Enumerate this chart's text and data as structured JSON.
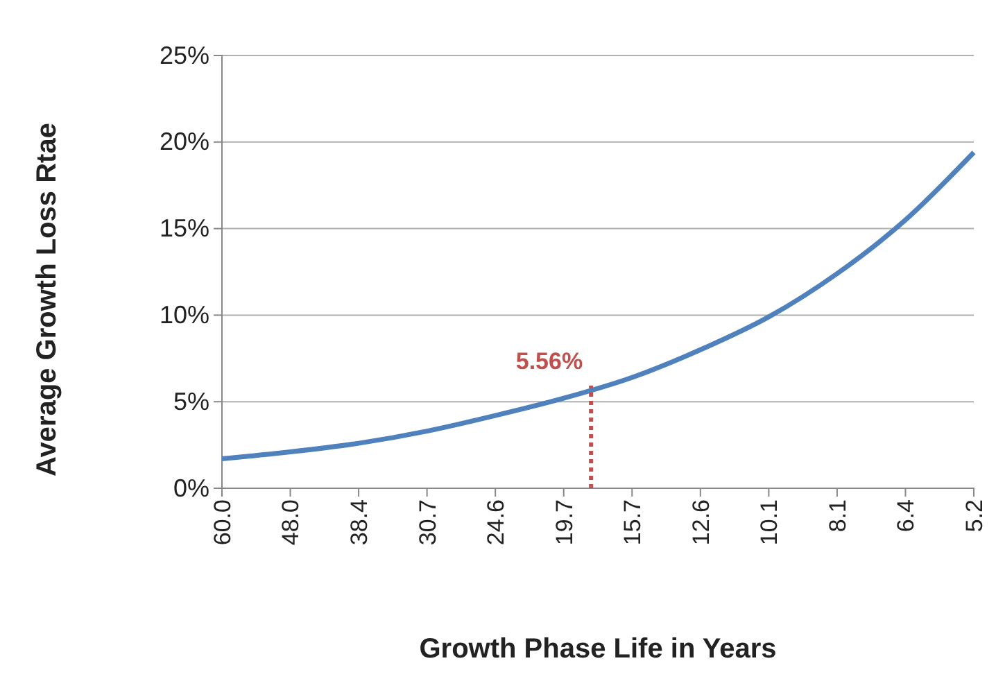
{
  "chart_data": {
    "type": "line",
    "xlabel": "Growth Phase Life in Years",
    "ylabel": "Average Growth Loss Rtae",
    "categories": [
      "60.0",
      "48.0",
      "38.4",
      "30.7",
      "24.6",
      "19.7",
      "15.7",
      "12.6",
      "10.1",
      "8.1",
      "6.4",
      "5.2"
    ],
    "series": [
      {
        "color": "#4f81bd",
        "values": [
          1.7,
          2.1,
          2.6,
          3.3,
          4.2,
          5.2,
          6.4,
          8.0,
          9.9,
          12.4,
          15.5,
          19.4
        ]
      }
    ],
    "ylim": [
      0,
      25
    ],
    "yticks": [
      {
        "value": 0,
        "label": "0%"
      },
      {
        "value": 5,
        "label": "5%"
      },
      {
        "value": 10,
        "label": "10%"
      },
      {
        "value": 15,
        "label": "15%"
      },
      {
        "value": 20,
        "label": "20%"
      },
      {
        "value": 25,
        "label": "25%"
      }
    ],
    "grid": "y",
    "marker": "none",
    "line_style": "solid",
    "annotations": [
      "5.56%"
    ]
  }
}
